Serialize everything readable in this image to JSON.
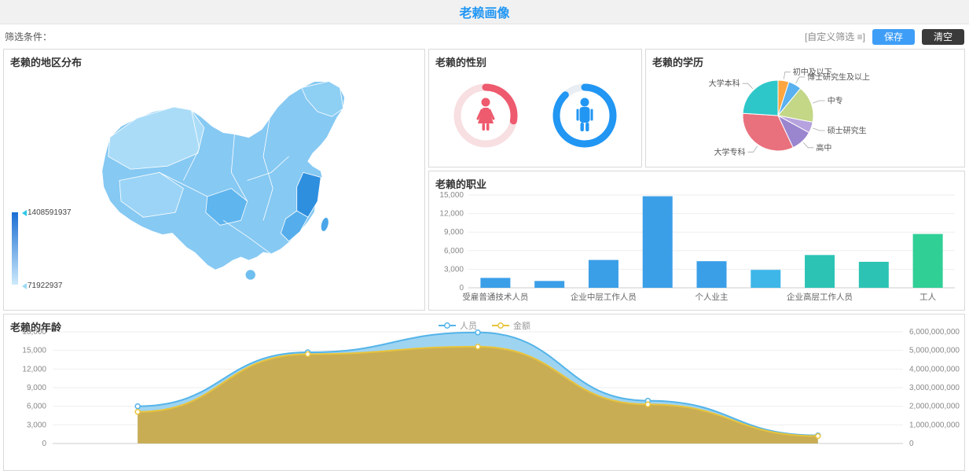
{
  "header": {
    "title": "老赖画像"
  },
  "filter_bar": {
    "label": "筛选条件：",
    "custom_filter_label": "[自定义筛选 ≡]",
    "save_label": "保存",
    "clear_label": "清空",
    "save_color": "#3e9ef7",
    "clear_color": "#3a3a3a"
  },
  "region_panel": {
    "title": "老赖的地区分布",
    "legend_max": "1408591937",
    "legend_min": "71922937"
  },
  "gender_panel": {
    "title": "老赖的性别",
    "female": {
      "track": "#f7dfe2"
    },
    "male": {
      "track": "#e8eef3"
    }
  },
  "education_panel": {
    "title": "老赖的学历"
  },
  "occupation_panel": {
    "title": "老赖的职业"
  },
  "age_panel": {
    "title": "老赖的年龄"
  },
  "chart_data": [
    {
      "type": "heatmap",
      "title": "老赖的地区分布",
      "note": "choropleth map of China, blue gradient scale",
      "value_max": 1408591937,
      "value_min": 71922937
    },
    {
      "type": "pie",
      "title": "老赖的性别",
      "series": [
        {
          "name": "女",
          "percent": 28,
          "color": "#ee5a6e"
        },
        {
          "name": "男",
          "percent": 88,
          "color": "#2196f3"
        }
      ]
    },
    {
      "type": "pie",
      "title": "老赖的学历",
      "categories": [
        "初中及以下",
        "博士研究生及以上",
        "中专",
        "硕士研究生",
        "高中",
        "大学专科",
        "大学本科"
      ],
      "values": [
        5,
        6,
        17,
        5,
        10,
        33,
        24
      ],
      "colors": [
        "#ffa640",
        "#5ab1ef",
        "#c3d787",
        "#b6a2de",
        "#9a85cf",
        "#e9707d",
        "#2ec7c9"
      ]
    },
    {
      "type": "bar",
      "title": "老赖的职业",
      "categories": [
        "受雇普通技术人员",
        "",
        "企业中层工作人员",
        "",
        "个人业主",
        "",
        "企业高层工作人员",
        "",
        "工人"
      ],
      "values": [
        1600,
        1100,
        4500,
        14800,
        4300,
        2900,
        5300,
        4200,
        8700
      ],
      "colors": [
        "#3b9fe8",
        "#3b9fe8",
        "#3b9fe8",
        "#3b9fe8",
        "#3b9fe8",
        "#3eb6e8",
        "#2cc3b4",
        "#2cc3b4",
        "#30cf96"
      ],
      "ylim": [
        0,
        15000
      ],
      "yticks": [
        "15,000",
        "12,000",
        "9,000",
        "6,000",
        "3,000",
        "0"
      ]
    },
    {
      "type": "area",
      "title": "老赖的年龄",
      "categories": [
        "",
        "",
        "",
        "",
        ""
      ],
      "series": [
        {
          "name": "人员",
          "axis": "left",
          "color": "#54b4e9",
          "fill": "#9fd4f1",
          "values": [
            6000,
            14700,
            17900,
            6900,
            1300
          ]
        },
        {
          "name": "金额",
          "axis": "right",
          "color": "#e8c43c",
          "fill": "#c9ad55",
          "values": [
            1700000000,
            4800000000,
            5200000000,
            2100000000,
            400000000
          ]
        }
      ],
      "left_ylim": [
        0,
        18000
      ],
      "right_ylim": [
        0,
        6000000000
      ],
      "left_ticks": [
        "18,000",
        "15,000",
        "12,000",
        "9,000",
        "6,000",
        "3,000",
        "0"
      ],
      "right_ticks": [
        "6,000,000,000",
        "5,000,000,000",
        "4,000,000,000",
        "3,000,000,000",
        "2,000,000,000",
        "1,000,000,000",
        "0"
      ],
      "legend_position": "top-center",
      "grid": true
    }
  ]
}
